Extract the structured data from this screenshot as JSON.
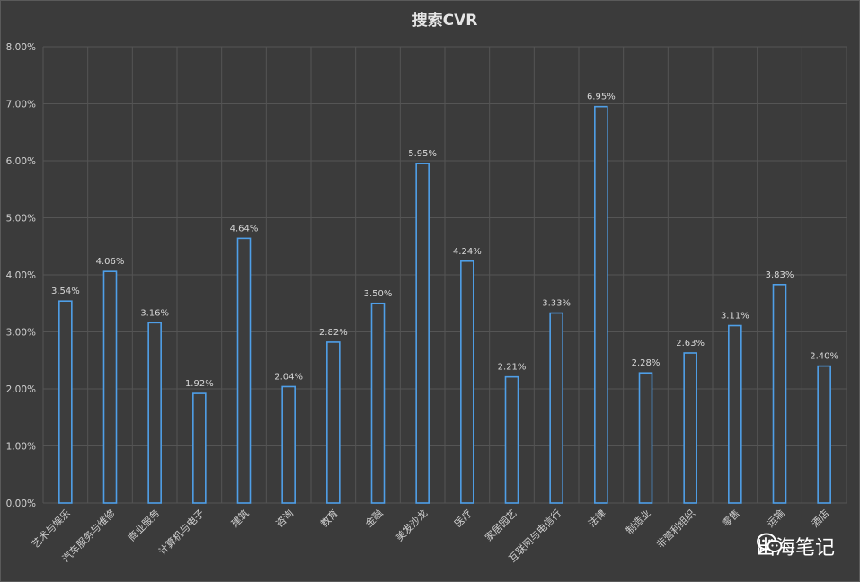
{
  "chart_data": {
    "type": "bar",
    "title": "搜索CVR",
    "categories": [
      "艺术与娱乐",
      "汽车服务与维修",
      "商业服务",
      "计算机与电子",
      "建筑",
      "咨询",
      "教育",
      "金融",
      "美发沙龙",
      "医疗",
      "家居园艺",
      "互联网与电信行",
      "法律",
      "制造业",
      "非营利组织",
      "零售",
      "运输",
      "酒店"
    ],
    "values": [
      3.54,
      4.06,
      3.16,
      1.92,
      4.64,
      2.04,
      2.82,
      3.5,
      5.95,
      4.24,
      2.21,
      3.33,
      6.95,
      2.28,
      2.63,
      3.11,
      3.83,
      2.4
    ],
    "value_labels": [
      "3.54%",
      "4.06%",
      "3.16%",
      "1.92%",
      "4.64%",
      "2.04%",
      "2.82%",
      "3.50%",
      "5.95%",
      "4.24%",
      "2.21%",
      "3.33%",
      "6.95%",
      "2.28%",
      "2.63%",
      "3.11%",
      "3.83%",
      "2.40%"
    ],
    "ylim": [
      0,
      8
    ],
    "yticks": [
      "0.00%",
      "1.00%",
      "2.00%",
      "3.00%",
      "4.00%",
      "5.00%",
      "6.00%",
      "7.00%",
      "8.00%"
    ],
    "grid": true,
    "colors": {
      "background": "#3b3b3b",
      "grid": "#555555",
      "bar_fill": "#3d3d3d",
      "bar_stroke": "#4f9fe8"
    }
  },
  "watermark": {
    "text": "出海笔记",
    "icon": "wechat-icon"
  }
}
